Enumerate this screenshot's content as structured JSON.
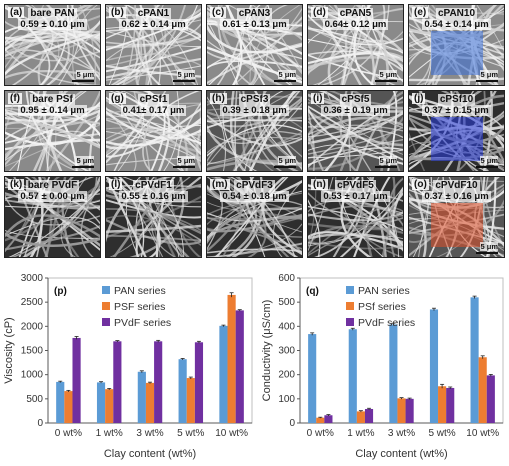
{
  "sem_panels": [
    {
      "label": "(a)",
      "title": "bare PAN",
      "diameter": "0.59 ± 0.10 μm",
      "scale": "5 μm",
      "tone": "light",
      "overlay": ""
    },
    {
      "label": "(b)",
      "title": "cPAN1",
      "diameter": "0.62 ± 0.14 μm",
      "scale": "5 μm",
      "tone": "light",
      "overlay": ""
    },
    {
      "label": "(c)",
      "title": "cPAN3",
      "diameter": "0.61 ± 0.13 μm",
      "scale": "5 μm",
      "tone": "light",
      "overlay": ""
    },
    {
      "label": "(d)",
      "title": "cPAN5",
      "diameter": "0.64± 0.12 μm",
      "scale": "5 μm",
      "tone": "light",
      "overlay": ""
    },
    {
      "label": "(e)",
      "title": "cPAN10",
      "diameter": "0.54 ± 0.14 μm",
      "scale": "5 μm",
      "tone": "light",
      "overlay": "#3a6fd8"
    },
    {
      "label": "(f)",
      "title": "bare PSf",
      "diameter": "0.95 ± 0.14 μm",
      "scale": "5 μm",
      "tone": "light",
      "overlay": ""
    },
    {
      "label": "(g)",
      "title": "cPSf1",
      "diameter": "0.41± 0.17 μm",
      "scale": "5 μm",
      "tone": "light",
      "overlay": ""
    },
    {
      "label": "(h)",
      "title": "cPSf3",
      "diameter": "0.39 ± 0.18 μm",
      "scale": "5 μm",
      "tone": "mid",
      "overlay": ""
    },
    {
      "label": "(i)",
      "title": "cPSf5",
      "diameter": "0.36 ± 0.19 μm",
      "scale": "5 μm",
      "tone": "mid",
      "overlay": ""
    },
    {
      "label": "(j)",
      "title": "cPSf10",
      "diameter": "0.37 ± 0.15 μm",
      "scale": "5 μm",
      "tone": "dark",
      "overlay": "#2a3ee0"
    },
    {
      "label": "(k)",
      "title": "bare PVdF",
      "diameter": "0.57 ± 0.00 μm",
      "scale": "",
      "tone": "dark",
      "overlay": ""
    },
    {
      "label": "(l)",
      "title": "cPVdF1",
      "diameter": "0.55 ± 0.16 μm",
      "scale": "",
      "tone": "dark",
      "overlay": ""
    },
    {
      "label": "(m)",
      "title": "cPVdF3",
      "diameter": "0.54 ± 0.18 μm",
      "scale": "",
      "tone": "dark",
      "overlay": ""
    },
    {
      "label": "(n)",
      "title": "cPVdF5",
      "diameter": "0.53 ± 0.17 μm",
      "scale": "",
      "tone": "dark",
      "overlay": ""
    },
    {
      "label": "(o)",
      "title": "cPVdF10",
      "diameter": "0.37 ± 0.16 μm",
      "scale": "5 μm",
      "tone": "mid",
      "overlay": "#e0502a"
    }
  ],
  "chart_data": [
    {
      "type": "bar",
      "panel_label": "(p)",
      "categories": [
        "0 wt%",
        "1 wt%",
        "3 wt%",
        "5 wt%",
        "10 wt%"
      ],
      "series": [
        {
          "name": "PAN series",
          "color": "#5b9bd5",
          "values": [
            850,
            840,
            1060,
            1320,
            2010
          ],
          "errors": [
            15,
            15,
            20,
            15,
            15
          ]
        },
        {
          "name": "PSF series",
          "color": "#ed7d31",
          "values": [
            660,
            700,
            830,
            930,
            2650
          ],
          "errors": [
            15,
            15,
            15,
            20,
            45
          ]
        },
        {
          "name": "PVdF series",
          "color": "#7030a0",
          "values": [
            1760,
            1690,
            1690,
            1670,
            2330
          ],
          "errors": [
            30,
            15,
            20,
            20,
            15
          ]
        }
      ],
      "xlabel": "Clay content (wt%)",
      "ylabel": "Viscosity (cP)",
      "ylim": [
        0,
        3000
      ],
      "yticks": [
        0,
        500,
        1000,
        1500,
        2000,
        2500,
        3000
      ],
      "grid": false,
      "legend": "top-left"
    },
    {
      "type": "bar",
      "panel_label": "(q)",
      "categories": [
        "0 wt%",
        "1 wt%",
        "3 wt%",
        "5 wt%",
        "10 wt%"
      ],
      "series": [
        {
          "name": "PAN series",
          "color": "#5b9bd5",
          "values": [
            368,
            388,
            408,
            470,
            520
          ],
          "errors": [
            5,
            4,
            5,
            5,
            5
          ]
        },
        {
          "name": "PSf series",
          "color": "#ed7d31",
          "values": [
            22,
            48,
            102,
            152,
            272
          ],
          "errors": [
            2,
            3,
            3,
            8,
            6
          ]
        },
        {
          "name": "PVdF series",
          "color": "#7030a0",
          "values": [
            32,
            58,
            100,
            145,
            197
          ],
          "errors": [
            3,
            3,
            3,
            4,
            4
          ]
        }
      ],
      "xlabel": "Clay content (wt%)",
      "ylabel": "Conductivity  (μS/cm)",
      "ylim": [
        0,
        600
      ],
      "yticks": [
        0,
        100,
        200,
        300,
        400,
        500,
        600
      ],
      "grid": false,
      "legend": "top-left"
    }
  ]
}
